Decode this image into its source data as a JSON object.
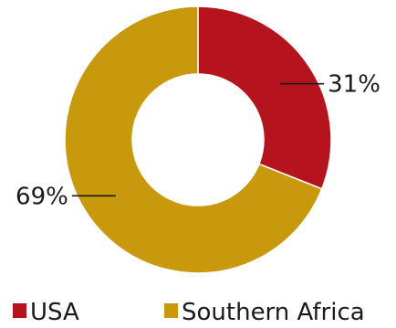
{
  "chart_data": {
    "type": "pie",
    "donut": true,
    "title": "",
    "legend_position": "bottom",
    "slices": [
      {
        "name": "USA",
        "value": 31,
        "label": "31%",
        "color": "#b5141f"
      },
      {
        "name": "Southern Africa",
        "value": 69,
        "label": "69%",
        "color": "#c8980d"
      }
    ]
  }
}
